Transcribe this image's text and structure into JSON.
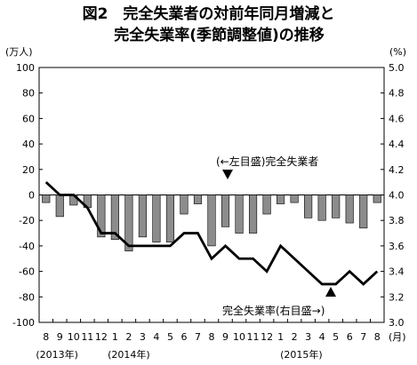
{
  "title": {
    "line1": "図2　完全失業者の対前年同月増減と",
    "line2": "完全失業率(季節調整値)の推移"
  },
  "chart_data": {
    "type": "bar",
    "axes": {
      "left_unit": "(万人)",
      "right_unit": "(%)",
      "month_unit": "(月)",
      "left_ylim": [
        -100,
        100
      ],
      "right_ylim": [
        3.0,
        5.0
      ],
      "left_ticks": [
        100,
        80,
        60,
        40,
        20,
        0,
        -20,
        -40,
        -60,
        -80,
        -100
      ],
      "right_ticks": [
        "5.0",
        "4.8",
        "4.6",
        "4.4",
        "4.2",
        "4.0",
        "3.8",
        "3.6",
        "3.4",
        "3.2",
        "3.0"
      ]
    },
    "categories": [
      "8",
      "9",
      "10",
      "11",
      "12",
      "1",
      "2",
      "3",
      "4",
      "5",
      "6",
      "7",
      "8",
      "9",
      "10",
      "11",
      "12",
      "1",
      "2",
      "3",
      "4",
      "5",
      "6",
      "7",
      "8"
    ],
    "year_labels": [
      "(2013年)",
      "(2014年)",
      "(2015年)"
    ],
    "series": [
      {
        "name": "完全失業者",
        "axis": "left",
        "type": "bar",
        "color": "#8c8c8c",
        "values": [
          -6,
          -17,
          -8,
          -10,
          -33,
          -35,
          -44,
          -33,
          -37,
          -37,
          -15,
          -7,
          -40,
          -25,
          -30,
          -30,
          -15,
          -7,
          -6,
          -18,
          -20,
          -18,
          -22,
          -26,
          -6
        ]
      },
      {
        "name": "完全失業率",
        "axis": "right",
        "type": "line",
        "color": "#000000",
        "values": [
          4.1,
          4.0,
          4.0,
          3.9,
          3.7,
          3.7,
          3.6,
          3.6,
          3.6,
          3.6,
          3.7,
          3.7,
          3.5,
          3.6,
          3.5,
          3.5,
          3.4,
          3.6,
          3.5,
          3.4,
          3.3,
          3.3,
          3.4,
          3.3,
          3.4
        ]
      }
    ],
    "annotations": {
      "left": "(←左目盛)完全失業者",
      "right": "完全失業率(右目盛→)"
    },
    "grid": false
  }
}
